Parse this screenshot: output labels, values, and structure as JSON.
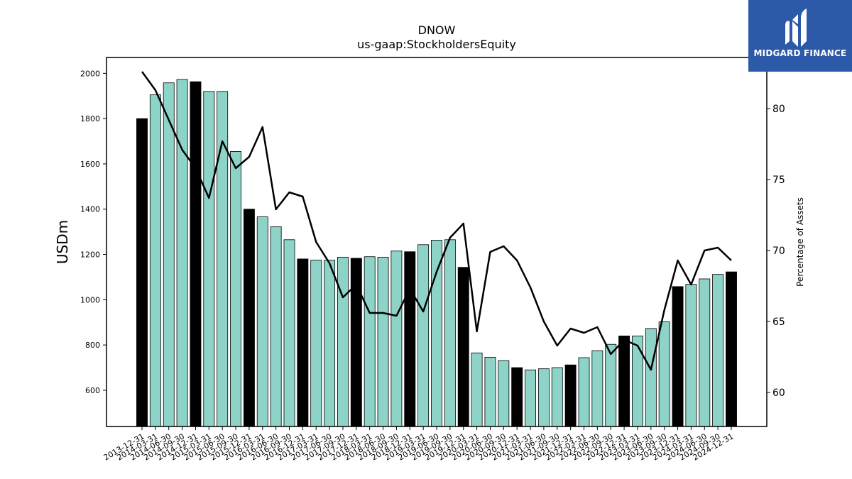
{
  "brand": {
    "name": "MIDGARD FINANCE",
    "logo_icon": "midgard-m-logo-icon",
    "background_color": "#2d5aa8"
  },
  "chart_data": {
    "type": "bar",
    "title": "DNOW",
    "subtitle": "us-gaap:StockholdersEquity",
    "ylabel": "USDm",
    "y2label": "Percentage of Assets",
    "ylim": [
      440,
      2070
    ],
    "y2lim": [
      57.6,
      83.6
    ],
    "yticks": [
      600,
      800,
      1000,
      1200,
      1400,
      1600,
      1800,
      2000
    ],
    "y2ticks": [
      60,
      65,
      70,
      75,
      80
    ],
    "colors": {
      "annual_bar": "#000000",
      "quarter_bar": "#8dd3c7",
      "line": "#000000"
    },
    "categories": [
      "2013-12-31",
      "2014-03-31",
      "2014-06-30",
      "2014-09-30",
      "2014-12-31",
      "2015-03-31",
      "2015-06-30",
      "2015-09-30",
      "2015-12-31",
      "2016-03-31",
      "2016-06-30",
      "2016-09-30",
      "2016-12-31",
      "2017-03-31",
      "2017-06-30",
      "2017-09-30",
      "2017-12-31",
      "2018-03-31",
      "2018-06-30",
      "2018-09-30",
      "2018-12-31",
      "2019-03-31",
      "2019-06-30",
      "2019-09-30",
      "2019-12-31",
      "2020-03-31",
      "2020-06-30",
      "2020-09-30",
      "2020-12-31",
      "2021-03-31",
      "2021-06-30",
      "2021-09-30",
      "2021-12-31",
      "2022-03-31",
      "2022-06-30",
      "2022-09-30",
      "2022-12-31",
      "2023-03-31",
      "2023-06-30",
      "2023-09-30",
      "2023-12-31",
      "2024-03-31",
      "2024-06-30",
      "2024-09-30",
      "2024-12-31"
    ],
    "series": [
      {
        "kind": "bar",
        "axis": "left",
        "values": [
          1800,
          1905,
          1958,
          1973,
          1963,
          1920,
          1920,
          1655,
          1400,
          1366,
          1322,
          1265,
          1180,
          1175,
          1175,
          1188,
          1183,
          1190,
          1188,
          1215,
          1212,
          1243,
          1263,
          1265,
          1143,
          765,
          746,
          731,
          700,
          690,
          695,
          700,
          712,
          744,
          775,
          803,
          840,
          840,
          873,
          903,
          1058,
          1068,
          1092,
          1112,
          1123
        ]
      },
      {
        "kind": "line",
        "axis": "right",
        "values": [
          82.6,
          81.3,
          79.2,
          77.1,
          75.8,
          73.7,
          77.7,
          75.8,
          76.6,
          78.7,
          72.9,
          74.1,
          73.8,
          70.6,
          69.1,
          66.7,
          67.6,
          65.6,
          65.6,
          65.4,
          67.3,
          65.7,
          68.5,
          70.9,
          71.9,
          64.3,
          69.9,
          70.3,
          69.3,
          67.4,
          65.0,
          63.3,
          64.5,
          64.2,
          64.6,
          62.7,
          63.7,
          63.3,
          61.6,
          65.8,
          69.3,
          67.6,
          70.0,
          70.2,
          69.3
        ]
      }
    ],
    "annual_categories": [
      "2013-12-31",
      "2014-12-31",
      "2015-12-31",
      "2016-12-31",
      "2017-12-31",
      "2018-12-31",
      "2019-12-31",
      "2020-12-31",
      "2021-12-31",
      "2022-12-31",
      "2023-12-31",
      "2024-12-31"
    ],
    "grid": false,
    "legend": "none"
  }
}
